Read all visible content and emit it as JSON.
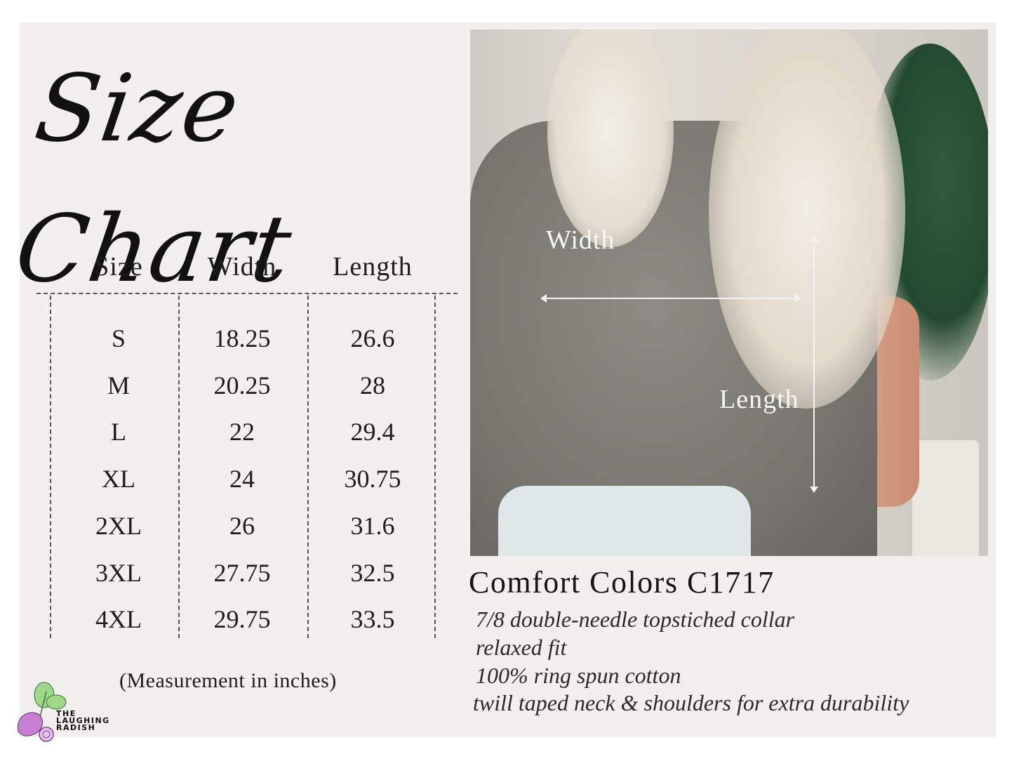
{
  "title": "Size Chart",
  "table": {
    "headers": [
      "Size",
      "Width",
      "Length"
    ],
    "rows": [
      [
        "S",
        "18.25",
        "26.6"
      ],
      [
        "M",
        "20.25",
        "28"
      ],
      [
        "L",
        "22",
        "29.4"
      ],
      [
        "XL",
        "24",
        "30.75"
      ],
      [
        "2XL",
        "26",
        "31.6"
      ],
      [
        "3XL",
        "27.75",
        "32.5"
      ],
      [
        "4XL",
        "29.75",
        "33.5"
      ]
    ],
    "note": "(Measurement in inches)"
  },
  "photo": {
    "width_label": "Width",
    "length_label": "Length"
  },
  "product": {
    "name": "Comfort Colors C1717",
    "features": [
      "7/8 double-needle topstiched collar",
      "relaxed fit",
      "100% ring spun cotton",
      "twill taped neck & shoulders for extra durability"
    ]
  },
  "logo": {
    "text_lines": [
      "THE",
      "LAUGHING",
      "RADISH"
    ],
    "colors": {
      "radish": "#c77fd6",
      "leaves": "#9ed98a"
    }
  },
  "colors": {
    "background": "#f3efee",
    "text": "#1d1d1d"
  }
}
